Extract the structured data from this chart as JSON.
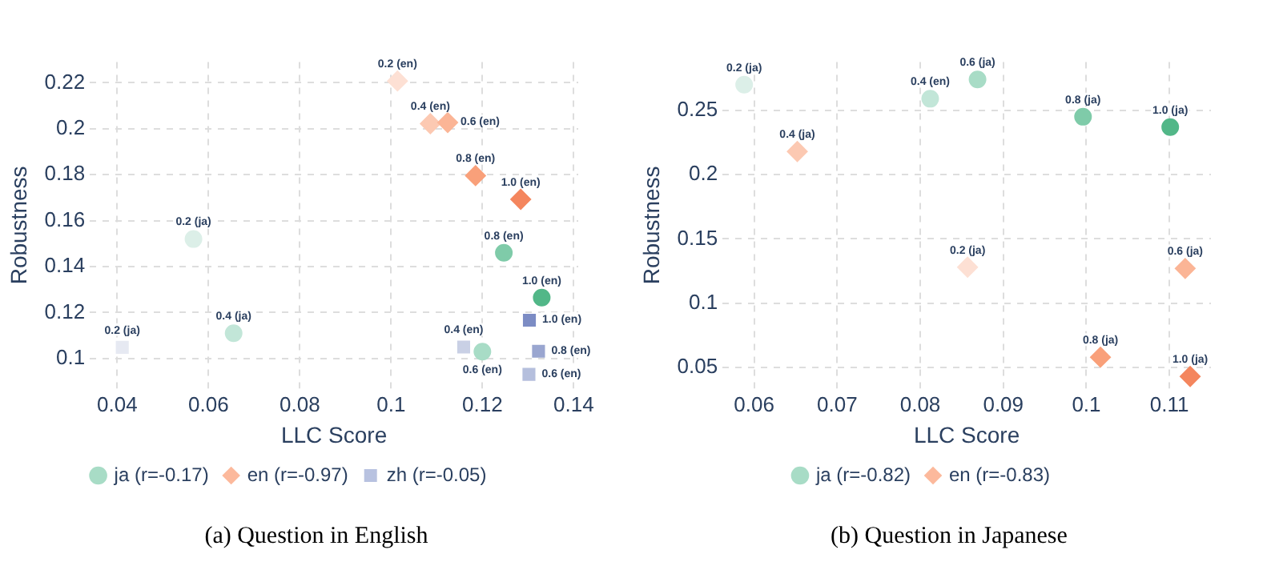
{
  "chart_data": [
    {
      "type": "scatter",
      "xlabel": "LLC Score",
      "ylabel": "Robustness",
      "xlim": [
        0.034,
        0.141
      ],
      "ylim": [
        0.087,
        0.229
      ],
      "xticks": [
        0.04,
        0.06,
        0.08,
        0.1,
        0.12,
        0.14
      ],
      "yticks": [
        0.1,
        0.12,
        0.14,
        0.16,
        0.18,
        0.2,
        0.22
      ],
      "grid": true,
      "legend": "bottom",
      "series": [
        {
          "name": "ja (r=-0.17)",
          "color": "#a8dcc6",
          "marker": "circle",
          "x": [
            0.0567,
            0.0655,
            0.12,
            0.1247,
            0.133
          ],
          "values": [
            0.152,
            0.111,
            0.103,
            0.146,
            0.1265
          ],
          "colors": [
            "#dcefe8",
            "#c2e6d8",
            "#a8dcc6",
            "#7fcba9",
            "#52b788"
          ]
        },
        {
          "name": "en (r=-0.97)",
          "color": "#fcb99c",
          "marker": "diamond",
          "x": [
            0.1014,
            0.1086,
            0.1124,
            0.1185,
            0.1284
          ],
          "values": [
            0.2208,
            0.2022,
            0.2027,
            0.1796,
            0.1693
          ],
          "colors": [
            "#fde0d4",
            "#fcc9b2",
            "#fbb596",
            "#f9a07a",
            "#f4865e"
          ]
        },
        {
          "name": "zh (r=-0.05)",
          "color": "#b8c2e0",
          "marker": "square",
          "x": [
            0.0411,
            0.1159,
            0.1302,
            0.1323,
            0.1303
          ],
          "values": [
            0.1049,
            0.105,
            0.0931,
            0.1032,
            0.1167
          ],
          "colors": [
            "#e6e9f2",
            "#c9d0e5",
            "#b5bfdd",
            "#9aa6d0",
            "#7c8cc4"
          ]
        }
      ],
      "annotations": [
        {
          "text": "0.2 (ja)",
          "x": 0.0567,
          "y": 0.152
        },
        {
          "text": "0.4 (ja)",
          "x": 0.0655,
          "y": 0.111
        },
        {
          "text": "0.6 (en)",
          "x": 0.12,
          "y": 0.103
        },
        {
          "text": "0.8 (en)",
          "x": 0.1247,
          "y": 0.146
        },
        {
          "text": "1.0 (en)",
          "x": 0.133,
          "y": 0.1265
        },
        {
          "text": "0.2 (en)",
          "x": 0.1014,
          "y": 0.2208
        },
        {
          "text": "0.4 (en)",
          "x": 0.1086,
          "y": 0.2022
        },
        {
          "text": "0.6 (en)",
          "x": 0.1124,
          "y": 0.2027
        },
        {
          "text": "0.8 (en)",
          "x": 0.1185,
          "y": 0.1796
        },
        {
          "text": "1.0 (en)",
          "x": 0.1284,
          "y": 0.1693
        },
        {
          "text": "0.2 (ja)",
          "x": 0.0411,
          "y": 0.1049
        },
        {
          "text": "0.4 (en)",
          "x": 0.1159,
          "y": 0.105
        },
        {
          "text": "0.6 (en)",
          "x": 0.1302,
          "y": 0.0931
        },
        {
          "text": "0.8 (en)",
          "x": 0.1323,
          "y": 0.1032
        },
        {
          "text": "1.0 (en)",
          "x": 0.1303,
          "y": 0.1167
        },
        "(a) Question in English"
      ]
    },
    {
      "type": "scatter",
      "xlabel": "LLC Score",
      "ylabel": "Robustness",
      "xlim": [
        0.0562,
        0.115
      ],
      "ylim": [
        0.0337,
        0.2875
      ],
      "xticks": [
        0.06,
        0.07,
        0.08,
        0.09,
        0.1,
        0.11
      ],
      "yticks": [
        0.05,
        0.1,
        0.15,
        0.2,
        0.25
      ],
      "grid": true,
      "legend": "bottom",
      "series": [
        {
          "name": "ja (r=-0.82)",
          "color": "#a8dcc6",
          "marker": "circle",
          "x": [
            0.0588,
            0.0812,
            0.0869,
            0.0996,
            0.1101
          ],
          "values": [
            0.27,
            0.259,
            0.274,
            0.245,
            0.237
          ],
          "colors": [
            "#dcefe8",
            "#c2e6d8",
            "#a8dcc6",
            "#7fcba9",
            "#52b788"
          ]
        },
        {
          "name": "en (r=-0.83)",
          "color": "#fcb99c",
          "marker": "diamond",
          "x": [
            0.0857,
            0.0652,
            0.1119,
            0.1017,
            0.1125
          ],
          "values": [
            0.128,
            0.218,
            0.127,
            0.058,
            0.043
          ],
          "colors": [
            "#fde0d4",
            "#fcc9b2",
            "#fbb596",
            "#f9a07a",
            "#f4865e"
          ]
        }
      ],
      "annotations": [
        {
          "text": "0.2 (ja)",
          "x": 0.0588,
          "y": 0.27
        },
        {
          "text": "0.4 (en)",
          "x": 0.0812,
          "y": 0.259
        },
        {
          "text": "0.6 (ja)",
          "x": 0.0869,
          "y": 0.274
        },
        {
          "text": "0.8 (ja)",
          "x": 0.0996,
          "y": 0.245
        },
        {
          "text": "1.0 (ja)",
          "x": 0.1101,
          "y": 0.237
        },
        {
          "text": "0.2 (ja)",
          "x": 0.0857,
          "y": 0.128
        },
        {
          "text": "0.4 (ja)",
          "x": 0.0652,
          "y": 0.218
        },
        {
          "text": "0.6 (ja)",
          "x": 0.1119,
          "y": 0.127
        },
        {
          "text": "0.8 (ja)",
          "x": 0.1017,
          "y": 0.058
        },
        {
          "text": "1.0 (ja)",
          "x": 0.1125,
          "y": 0.043
        },
        "(b) Question in Japanese"
      ]
    }
  ]
}
